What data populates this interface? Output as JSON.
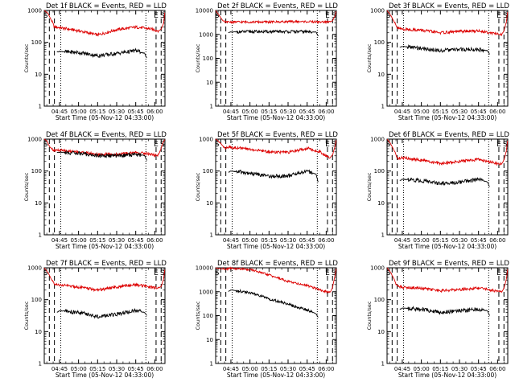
{
  "figure": {
    "colors": {
      "events": "#000000",
      "lld": "#dd0000",
      "axes": "#000000",
      "background": "#ffffff"
    }
  },
  "chart_data": [
    {
      "type": "line",
      "title": "Det 1f BLACK = Events, RED = LLD",
      "xlabel": "Start Time (05-Nov-12 04:33:00)",
      "ylabel": "Counts/sec",
      "xlim": [
        "04:33",
        "06:08"
      ],
      "ylim": [
        1,
        1000
      ],
      "yscale": "log",
      "xticks": [
        "04:45",
        "05:00",
        "05:15",
        "05:30",
        "05:45",
        "06:00"
      ],
      "yticks": [
        "1",
        "10",
        "100",
        "1000"
      ],
      "markers": [
        {
          "x": "04:34",
          "label": "S"
        },
        {
          "x": "06:01",
          "label": "E"
        },
        {
          "x": "06:06",
          "label": "S"
        }
      ],
      "dashed_lines": [
        "04:37",
        "04:41",
        "06:01",
        "06:05"
      ],
      "dotted_lines": [
        "04:46",
        "05:53"
      ],
      "series": [
        {
          "name": "LLD",
          "x": [
            "04:33",
            "04:36",
            "04:39",
            "04:41",
            "04:45",
            "05:00",
            "05:15",
            "05:30",
            "05:45",
            "05:55",
            "06:03",
            "06:05",
            "06:07",
            "06:08"
          ],
          "y": [
            1000,
            800,
            450,
            300,
            290,
            230,
            170,
            250,
            300,
            270,
            230,
            260,
            400,
            1000
          ]
        },
        {
          "name": "Events",
          "x": [
            "04:43",
            "04:45",
            "05:00",
            "05:15",
            "05:30",
            "05:45",
            "05:52",
            "05:54"
          ],
          "y": [
            50,
            52,
            48,
            38,
            45,
            55,
            45,
            30
          ]
        }
      ]
    },
    {
      "type": "line",
      "title": "Det 2f BLACK = Events, RED = LLD",
      "xlabel": "Start Time (05-Nov-12 04:33:00)",
      "ylabel": "Counts/sec",
      "xlim": [
        "04:33",
        "06:08"
      ],
      "ylim": [
        1,
        10000
      ],
      "yscale": "log",
      "xticks": [
        "04:45",
        "05:00",
        "05:15",
        "05:30",
        "05:45",
        "06:00"
      ],
      "yticks": [
        "1",
        "10",
        "100",
        "1000",
        "10000"
      ],
      "markers": [
        {
          "x": "04:34",
          "label": "S"
        },
        {
          "x": "06:01",
          "label": "E"
        },
        {
          "x": "06:06",
          "label": "S"
        }
      ],
      "dashed_lines": [
        "04:37",
        "04:41",
        "06:01",
        "06:05"
      ],
      "dotted_lines": [
        "04:46",
        "05:53"
      ],
      "series": [
        {
          "name": "LLD",
          "x": [
            "04:33",
            "04:36",
            "04:39",
            "04:41",
            "04:45",
            "05:00",
            "05:15",
            "05:30",
            "05:45",
            "05:55",
            "06:03",
            "06:05",
            "06:07",
            "06:08"
          ],
          "y": [
            10000,
            6000,
            3500,
            3200,
            3300,
            3300,
            3300,
            3400,
            3400,
            3300,
            3300,
            3800,
            6000,
            10000
          ]
        },
        {
          "name": "Events",
          "x": [
            "04:43",
            "04:45",
            "05:00",
            "05:15",
            "05:30",
            "05:45",
            "05:52",
            "05:54"
          ],
          "y": [
            1200,
            1250,
            1300,
            1300,
            1300,
            1300,
            1250,
            800
          ]
        }
      ]
    },
    {
      "type": "line",
      "title": "Det 3f BLACK = Events, RED = LLD",
      "xlabel": "Start Time (05-Nov-12 04:33:00)",
      "ylabel": "Counts/sec",
      "xlim": [
        "04:33",
        "06:08"
      ],
      "ylim": [
        1,
        1000
      ],
      "yscale": "log",
      "xticks": [
        "04:45",
        "05:00",
        "05:15",
        "05:30",
        "05:45",
        "06:00"
      ],
      "yticks": [
        "1",
        "10",
        "100",
        "1000"
      ],
      "markers": [
        {
          "x": "04:34",
          "label": "S"
        },
        {
          "x": "06:01",
          "label": "E"
        },
        {
          "x": "06:06",
          "label": "S"
        }
      ],
      "dashed_lines": [
        "04:37",
        "04:41",
        "06:01",
        "06:05"
      ],
      "dotted_lines": [
        "04:46",
        "05:53"
      ],
      "series": [
        {
          "name": "LLD",
          "x": [
            "04:33",
            "04:36",
            "04:39",
            "04:41",
            "04:45",
            "05:00",
            "05:15",
            "05:30",
            "05:45",
            "05:55",
            "06:03",
            "06:05",
            "06:07",
            "06:08"
          ],
          "y": [
            1000,
            700,
            400,
            280,
            260,
            240,
            200,
            220,
            230,
            200,
            170,
            230,
            450,
            1000
          ]
        },
        {
          "name": "Events",
          "x": [
            "04:43",
            "04:45",
            "05:00",
            "05:15",
            "05:30",
            "05:45",
            "05:52",
            "05:54"
          ],
          "y": [
            70,
            75,
            65,
            55,
            60,
            60,
            55,
            40
          ]
        }
      ]
    },
    {
      "type": "line",
      "title": "Det 4f BLACK = Events, RED = LLD",
      "xlabel": "Start Time (05-Nov-12 04:33:00)",
      "ylabel": "Counts/sec",
      "xlim": [
        "04:33",
        "06:08"
      ],
      "ylim": [
        1,
        1000
      ],
      "yscale": "log",
      "xticks": [
        "04:45",
        "05:00",
        "05:15",
        "05:30",
        "05:45",
        "06:00"
      ],
      "yticks": [
        "1",
        "10",
        "100",
        "1000"
      ],
      "markers": [
        {
          "x": "04:34",
          "label": "S"
        },
        {
          "x": "06:01",
          "label": "E"
        },
        {
          "x": "06:06",
          "label": "S"
        }
      ],
      "dashed_lines": [
        "04:37",
        "04:41",
        "06:01",
        "06:05"
      ],
      "dotted_lines": [
        "04:46",
        "05:53"
      ],
      "series": [
        {
          "name": "LLD",
          "x": [
            "04:33",
            "04:35",
            "04:37",
            "04:40",
            "04:45",
            "05:00",
            "05:15",
            "05:30",
            "05:45",
            "05:55",
            "06:02",
            "06:04",
            "06:06",
            "06:08"
          ],
          "y": [
            1000,
            900,
            600,
            450,
            440,
            400,
            330,
            330,
            380,
            350,
            300,
            400,
            700,
            1000
          ]
        },
        {
          "name": "Events",
          "x": [
            "04:43",
            "04:45",
            "05:00",
            "05:15",
            "05:30",
            "05:45",
            "05:52",
            "05:54"
          ],
          "y": [
            380,
            390,
            360,
            300,
            300,
            330,
            310,
            200
          ]
        }
      ]
    },
    {
      "type": "line",
      "title": "Det 5f BLACK = Events, RED = LLD",
      "xlabel": "Start Time (05-Nov-12 04:33:00)",
      "ylabel": "Counts/sec",
      "xlim": [
        "04:33",
        "06:08"
      ],
      "ylim": [
        1,
        1000
      ],
      "yscale": "log",
      "xticks": [
        "04:45",
        "05:00",
        "05:15",
        "05:30",
        "05:45",
        "06:00"
      ],
      "yticks": [
        "1",
        "10",
        "100",
        "1000"
      ],
      "markers": [
        {
          "x": "04:34",
          "label": "S"
        },
        {
          "x": "06:01",
          "label": "E"
        },
        {
          "x": "06:06",
          "label": "S"
        }
      ],
      "dashed_lines": [
        "04:37",
        "04:41",
        "06:01",
        "06:05"
      ],
      "dotted_lines": [
        "04:46",
        "05:53"
      ],
      "series": [
        {
          "name": "LLD",
          "x": [
            "04:33",
            "04:36",
            "04:39",
            "04:41",
            "04:45",
            "05:00",
            "05:15",
            "05:30",
            "05:45",
            "05:55",
            "06:03",
            "06:05",
            "06:07",
            "06:08"
          ],
          "y": [
            1000,
            800,
            600,
            520,
            560,
            480,
            400,
            380,
            520,
            400,
            260,
            320,
            600,
            1000
          ]
        },
        {
          "name": "Events",
          "x": [
            "04:43",
            "04:45",
            "05:00",
            "05:15",
            "05:30",
            "05:45",
            "05:52",
            "05:54"
          ],
          "y": [
            90,
            100,
            85,
            70,
            70,
            100,
            80,
            40
          ]
        }
      ]
    },
    {
      "type": "line",
      "title": "Det 6f BLACK = Events, RED = LLD",
      "xlabel": "Start Time (05-Nov-12 04:33:00)",
      "ylabel": "Counts/sec",
      "xlim": [
        "04:33",
        "06:08"
      ],
      "ylim": [
        1,
        1000
      ],
      "yscale": "log",
      "xticks": [
        "04:45",
        "05:00",
        "05:15",
        "05:30",
        "05:45",
        "06:00"
      ],
      "yticks": [
        "1",
        "10",
        "100",
        "1000"
      ],
      "markers": [
        {
          "x": "04:34",
          "label": "S"
        },
        {
          "x": "06:01",
          "label": "E"
        },
        {
          "x": "06:06",
          "label": "S"
        }
      ],
      "dashed_lines": [
        "04:37",
        "04:41",
        "06:01",
        "06:05"
      ],
      "dotted_lines": [
        "04:46",
        "05:53"
      ],
      "series": [
        {
          "name": "LLD",
          "x": [
            "04:33",
            "04:36",
            "04:39",
            "04:41",
            "04:45",
            "05:00",
            "05:15",
            "05:30",
            "05:45",
            "05:55",
            "06:03",
            "06:05",
            "06:07",
            "06:08"
          ],
          "y": [
            1000,
            700,
            400,
            250,
            260,
            220,
            170,
            200,
            230,
            190,
            160,
            220,
            450,
            1000
          ]
        },
        {
          "name": "Events",
          "x": [
            "04:43",
            "04:45",
            "05:00",
            "05:15",
            "05:30",
            "05:45",
            "05:52",
            "05:54"
          ],
          "y": [
            50,
            55,
            50,
            40,
            45,
            55,
            45,
            30
          ]
        }
      ]
    },
    {
      "type": "line",
      "title": "Det 7f BLACK = Events, RED = LLD",
      "xlabel": "Start Time (05-Nov-12 04:33:00)",
      "ylabel": "Counts/sec",
      "xlim": [
        "04:33",
        "06:08"
      ],
      "ylim": [
        1,
        1000
      ],
      "yscale": "log",
      "xticks": [
        "04:45",
        "05:00",
        "05:15",
        "05:30",
        "05:45",
        "06:00"
      ],
      "yticks": [
        "1",
        "10",
        "100",
        "1000"
      ],
      "markers": [
        {
          "x": "04:34",
          "label": "S"
        },
        {
          "x": "06:01",
          "label": "E"
        },
        {
          "x": "06:06",
          "label": "S"
        }
      ],
      "dashed_lines": [
        "04:37",
        "04:41",
        "06:01",
        "06:05"
      ],
      "dotted_lines": [
        "04:46",
        "05:53"
      ],
      "series": [
        {
          "name": "LLD",
          "x": [
            "04:33",
            "04:36",
            "04:39",
            "04:41",
            "04:45",
            "05:00",
            "05:15",
            "05:30",
            "05:45",
            "05:55",
            "06:03",
            "06:05",
            "06:07",
            "06:08"
          ],
          "y": [
            1000,
            700,
            400,
            300,
            290,
            250,
            200,
            250,
            300,
            250,
            230,
            260,
            450,
            1000
          ]
        },
        {
          "name": "Events",
          "x": [
            "04:43",
            "04:45",
            "05:00",
            "05:15",
            "05:30",
            "05:45",
            "05:52",
            "05:54"
          ],
          "y": [
            40,
            45,
            40,
            30,
            35,
            45,
            40,
            30
          ]
        }
      ]
    },
    {
      "type": "line",
      "title": "Det 8f BLACK = Events, RED = LLD",
      "xlabel": "Start Time (05-Nov-12 04:33:00)",
      "ylabel": "Counts/sec",
      "xlim": [
        "04:33",
        "06:08"
      ],
      "ylim": [
        1,
        10000
      ],
      "yscale": "log",
      "xticks": [
        "04:45",
        "05:00",
        "05:15",
        "05:30",
        "05:45",
        "06:00"
      ],
      "yticks": [
        "1",
        "10",
        "100",
        "1000",
        "10000"
      ],
      "markers": [
        {
          "x": "04:34",
          "label": "S"
        },
        {
          "x": "06:01",
          "label": "E"
        },
        {
          "x": "06:06",
          "label": "S"
        }
      ],
      "dashed_lines": [
        "04:37",
        "04:41",
        "06:01",
        "06:05"
      ],
      "dotted_lines": [
        "04:46",
        "05:53"
      ],
      "series": [
        {
          "name": "LLD",
          "x": [
            "04:33",
            "04:35",
            "04:38",
            "04:41",
            "04:45",
            "05:00",
            "05:15",
            "05:30",
            "05:45",
            "05:55",
            "06:03",
            "06:05",
            "06:07",
            "06:08"
          ],
          "y": [
            10000,
            9500,
            9000,
            9000,
            9500,
            8500,
            5000,
            2700,
            1800,
            1200,
            900,
            1500,
            5000,
            10000
          ]
        },
        {
          "name": "Events",
          "x": [
            "04:43",
            "04:45",
            "05:00",
            "05:15",
            "05:30",
            "05:45",
            "05:52",
            "05:54"
          ],
          "y": [
            1000,
            1200,
            900,
            500,
            300,
            170,
            120,
            80
          ]
        }
      ]
    },
    {
      "type": "line",
      "title": "Det 9f BLACK = Events, RED = LLD",
      "xlabel": "Start Time (05-Nov-12 04:33:00)",
      "ylabel": "Counts/sec",
      "xlim": [
        "04:33",
        "06:08"
      ],
      "ylim": [
        1,
        1000
      ],
      "yscale": "log",
      "xticks": [
        "04:45",
        "05:00",
        "05:15",
        "05:30",
        "05:45",
        "06:00"
      ],
      "yticks": [
        "1",
        "10",
        "100",
        "1000"
      ],
      "markers": [
        {
          "x": "04:34",
          "label": "S"
        },
        {
          "x": "06:01",
          "label": "E"
        },
        {
          "x": "06:06",
          "label": "S"
        }
      ],
      "dashed_lines": [
        "04:37",
        "04:41",
        "06:01",
        "06:05"
      ],
      "dotted_lines": [
        "04:46",
        "05:53"
      ],
      "series": [
        {
          "name": "LLD",
          "x": [
            "04:33",
            "04:36",
            "04:39",
            "04:41",
            "04:45",
            "05:00",
            "05:15",
            "05:30",
            "05:45",
            "05:55",
            "06:03",
            "06:05",
            "06:07",
            "06:08"
          ],
          "y": [
            1000,
            700,
            400,
            270,
            250,
            230,
            190,
            210,
            230,
            200,
            170,
            230,
            450,
            1000
          ]
        },
        {
          "name": "Events",
          "x": [
            "04:43",
            "04:45",
            "05:00",
            "05:15",
            "05:30",
            "05:45",
            "05:52",
            "05:54"
          ],
          "y": [
            50,
            55,
            50,
            40,
            45,
            50,
            45,
            30
          ]
        }
      ]
    }
  ]
}
